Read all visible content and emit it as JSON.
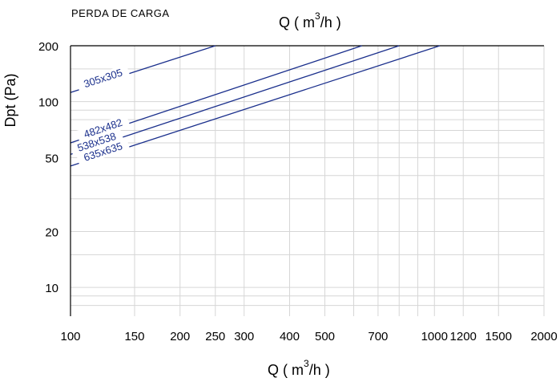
{
  "page": {
    "title": "PERDA DE CARGA"
  },
  "chart_data": {
    "type": "line",
    "title": "PERDA DE CARGA",
    "xlabel": {
      "pre": "Q ( m",
      "sup": "3",
      "post": "/h )"
    },
    "ylabel": "Dpt (Pa)",
    "x_scale": "log",
    "y_scale": "log",
    "xlim": [
      100,
      2000
    ],
    "ylim": [
      7,
      200
    ],
    "x_ticks": [
      100,
      150,
      200,
      250,
      300,
      400,
      500,
      700,
      1000,
      1200,
      1500,
      2000
    ],
    "y_ticks": [
      10,
      20,
      50,
      100,
      200
    ],
    "grid": true,
    "line_color": "#1a2f8c",
    "series": [
      {
        "name": "305x305",
        "x": [
          100,
          250
        ],
        "y": [
          112,
          200
        ]
      },
      {
        "name": "482x482",
        "x": [
          100,
          632
        ],
        "y": [
          60,
          200
        ]
      },
      {
        "name": "538x538",
        "x": [
          100,
          800
        ],
        "y": [
          52,
          200
        ]
      },
      {
        "name": "635x635",
        "x": [
          100,
          1035
        ],
        "y": [
          45,
          200
        ]
      }
    ]
  }
}
